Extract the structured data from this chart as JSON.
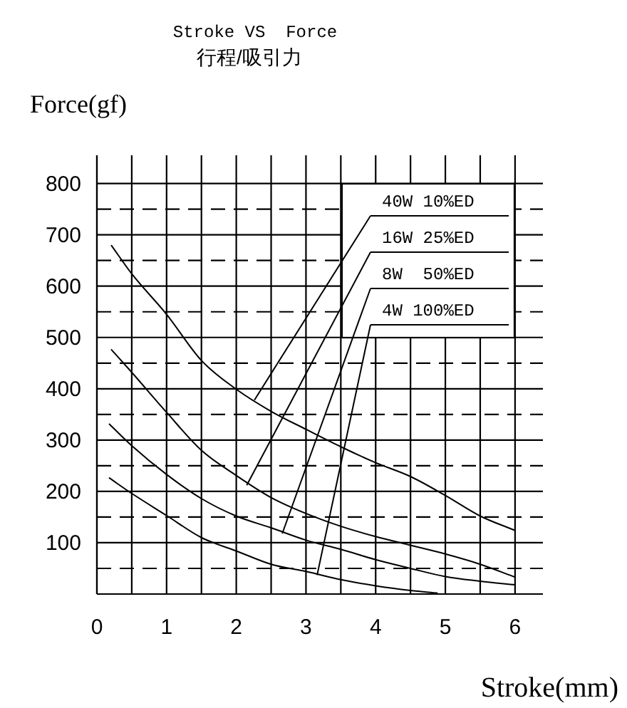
{
  "chart_data": {
    "type": "line",
    "title": "Stroke VS  Force",
    "subtitle": "行程/吸引力",
    "xlabel": "Stroke(mm)",
    "ylabel": "Force(gf)",
    "series": [
      {
        "color": "#000000",
        "x": [
          0.21,
          0.5,
          1,
          1.5,
          2,
          2.5,
          3,
          3.5,
          4,
          4.5,
          5,
          5.5,
          6
        ],
        "values": [
          679,
          624,
          545,
          455,
          399,
          356,
          321,
          287,
          256,
          229,
          192,
          152,
          124
        ]
      },
      {
        "color": "#000000",
        "x": [
          0.21,
          0.5,
          1,
          1.5,
          2,
          2.5,
          3,
          3.5,
          4,
          4.5,
          5,
          5.5,
          6
        ],
        "values": [
          476,
          432,
          354,
          280,
          231,
          188,
          157,
          132,
          112,
          95,
          78,
          58,
          33
        ]
      },
      {
        "color": "#000000",
        "x": [
          0.18,
          0.5,
          1,
          1.5,
          2,
          2.5,
          3,
          3.5,
          4,
          4.5,
          5,
          5.5,
          6
        ],
        "values": [
          331,
          289,
          233,
          186,
          152,
          129,
          105,
          87,
          67,
          50,
          34,
          25,
          18
        ]
      },
      {
        "color": "#000000",
        "x": [
          0.18,
          0.5,
          1,
          1.5,
          2,
          2.5,
          3,
          3.5,
          4,
          4.5,
          4.88
        ],
        "values": [
          226,
          196,
          153,
          110,
          84,
          58,
          44,
          28,
          16,
          7,
          2
        ]
      }
    ],
    "xlim": [
      0,
      6.4
    ],
    "ylim": [
      0,
      855
    ],
    "xticks": [
      0,
      {
        "value": 0.5,
        "label": null
      },
      1,
      {
        "value": 1.5,
        "label": null
      },
      2,
      {
        "value": 2.5,
        "label": null
      },
      3,
      {
        "value": 3.5,
        "label": null
      },
      4,
      {
        "value": 4.5,
        "label": null
      },
      5,
      {
        "value": 5.5,
        "label": null
      },
      6
    ],
    "yticks": [
      {
        "value": 50,
        "label": null
      },
      100,
      {
        "value": 150,
        "label": null
      },
      200,
      {
        "value": 250,
        "label": null
      },
      300,
      {
        "value": 350,
        "label": null
      },
      400,
      {
        "value": 450,
        "label": null
      },
      500,
      {
        "value": 550,
        "label": null
      },
      600,
      {
        "value": 650,
        "label": null
      },
      700,
      {
        "value": 750,
        "label": null
      },
      800
    ],
    "grid": true,
    "annotations": [
      {
        "text": "40W 10%ED",
        "x": 2.26,
        "y": 378
      },
      {
        "text": "16W 25%ED",
        "x": 2.15,
        "y": 212
      },
      {
        "text": "8W  50%ED",
        "x": 2.66,
        "y": 118
      },
      {
        "text": "4W 100%ED",
        "x": 3.16,
        "y": 37
      }
    ]
  }
}
